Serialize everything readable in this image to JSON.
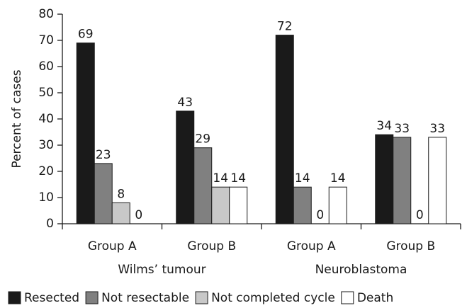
{
  "chart_data": {
    "type": "bar",
    "y_label": "Percent of cases",
    "categories": [
      "Group A",
      "Group B",
      "Group A",
      "Group B"
    ],
    "group_labels": [
      "Wilms’ tumour",
      "Neuroblastoma"
    ],
    "series": [
      {
        "name": "Resected",
        "color": "#1a1a1a",
        "values": [
          69,
          43,
          72,
          34
        ]
      },
      {
        "name": "Not resectable",
        "color": "#808080",
        "values": [
          23,
          29,
          14,
          33
        ]
      },
      {
        "name": "Not completed cycle",
        "color": "#c8c8c8",
        "values": [
          8,
          14,
          0,
          0
        ]
      },
      {
        "name": "Death",
        "color": "#ffffff",
        "values": [
          0,
          14,
          14,
          33
        ]
      }
    ],
    "ylim": [
      0,
      80
    ],
    "yticks": [
      0,
      10,
      20,
      30,
      40,
      50,
      60,
      70,
      80
    ]
  }
}
